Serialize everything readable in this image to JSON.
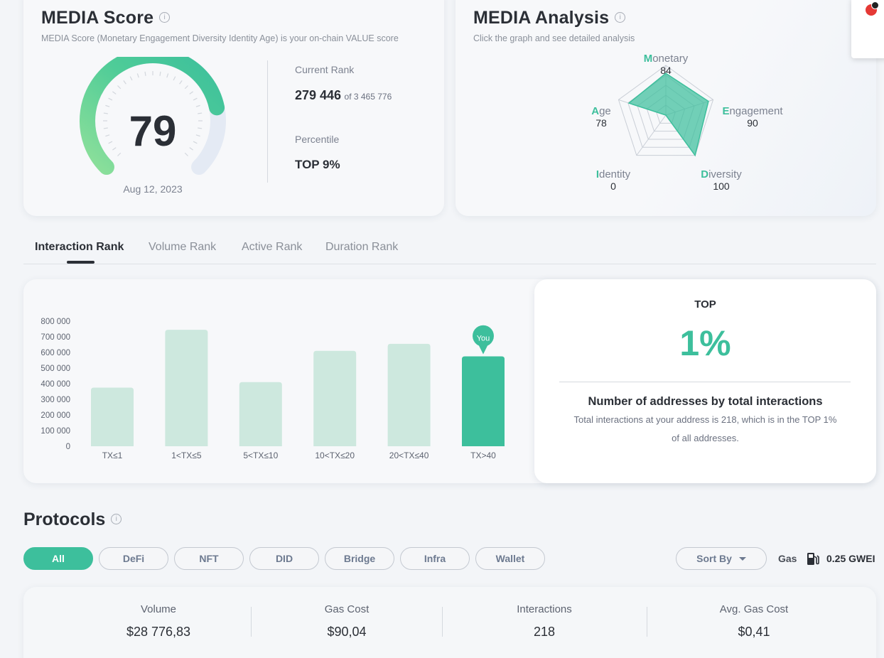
{
  "score_card": {
    "title": "MEDIA Score",
    "info": "i",
    "subtitle": "MEDIA Score (Monetary Engagement Diversity Identity Age) is your on-chain VALUE score",
    "score": "79",
    "score_fraction": 0.79,
    "date": "Aug 12, 2023",
    "current_rank_label": "Current Rank",
    "current_rank_value": "279 446",
    "current_rank_total": "of 3 465 776",
    "percentile_label": "Percentile",
    "percentile_value": "TOP 9%"
  },
  "analysis_card": {
    "title": "MEDIA Analysis",
    "info": "i",
    "subtitle": "Click the graph and see detailed analysis",
    "axes": [
      {
        "initial": "M",
        "rest": "onetary",
        "value": "84",
        "score": 84
      },
      {
        "initial": "E",
        "rest": "ngagement",
        "value": "90",
        "score": 90
      },
      {
        "initial": "D",
        "rest": "iversity",
        "value": "100",
        "score": 100
      },
      {
        "initial": "I",
        "rest": "dentity",
        "value": "0",
        "score": 0
      },
      {
        "initial": "A",
        "rest": "ge",
        "value": "78",
        "score": 78
      }
    ]
  },
  "tabs": [
    {
      "label": "Interaction Rank",
      "active": true
    },
    {
      "label": "Volume Rank",
      "active": false
    },
    {
      "label": "Active Rank",
      "active": false
    },
    {
      "label": "Duration Rank",
      "active": false
    }
  ],
  "chart_data": {
    "type": "bar",
    "categories": [
      "TX≤1",
      "1<TX≤5",
      "5<TX≤10",
      "10<TX≤20",
      "20<TX≤40",
      "TX>40"
    ],
    "values": [
      375000,
      745000,
      410000,
      610000,
      655000,
      575000
    ],
    "highlight_index": 5,
    "highlight_label": "You",
    "yticks": [
      "800 000",
      "700 000",
      "600 000",
      "500 000",
      "400 000",
      "300 000",
      "200 000",
      "100 000",
      "0"
    ],
    "ylim": [
      0,
      800000
    ],
    "colors": {
      "bar": "#cde8de",
      "highlight": "#3dbf9c"
    }
  },
  "rank_panel": {
    "top_label": "TOP",
    "percent": "1%",
    "heading": "Number of addresses by total interactions",
    "description_line1": "Total interactions at your address is 218, which is in the TOP 1%",
    "description_line2": "of all addresses."
  },
  "protocols": {
    "title": "Protocols",
    "info": "i",
    "filters": [
      {
        "label": "All",
        "active": true
      },
      {
        "label": "DeFi",
        "active": false
      },
      {
        "label": "NFT",
        "active": false
      },
      {
        "label": "DID",
        "active": false
      },
      {
        "label": "Bridge",
        "active": false
      },
      {
        "label": "Infra",
        "active": false
      },
      {
        "label": "Wallet",
        "active": false
      }
    ],
    "sort_label": "Sort By",
    "gas_label": "Gas",
    "gas_value": "0.25 GWEI"
  },
  "stats": [
    {
      "label": "Volume",
      "value": "$28 776,83"
    },
    {
      "label": "Gas Cost",
      "value": "$90,04"
    },
    {
      "label": "Interactions",
      "value": "218"
    },
    {
      "label": "Avg. Gas Cost",
      "value": "$0,41"
    }
  ],
  "colors": {
    "accent": "#3dbf9c",
    "accent_light": "#cde8de",
    "text": "#2b2f36"
  }
}
